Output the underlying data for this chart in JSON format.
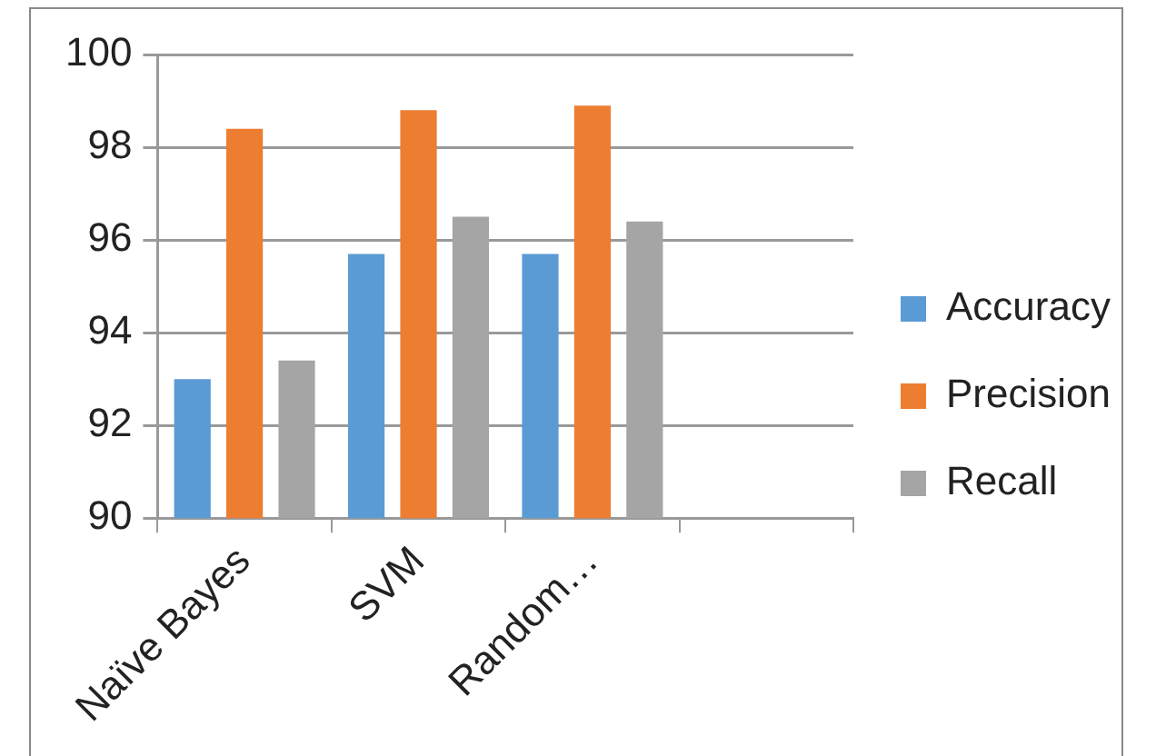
{
  "chart_data": {
    "type": "bar",
    "categories": [
      "Naïve Bayes",
      "SVM",
      "Random…",
      null
    ],
    "series": [
      {
        "name": "Accuracy",
        "color": "#5b9bd5",
        "values": [
          93.0,
          95.7,
          95.7,
          null
        ]
      },
      {
        "name": "Precision",
        "color": "#ed7d31",
        "values": [
          98.4,
          98.8,
          98.9,
          null
        ]
      },
      {
        "name": "Recall",
        "color": "#a5a5a5",
        "values": [
          93.4,
          96.5,
          96.4,
          null
        ]
      }
    ],
    "ylim": [
      90,
      100
    ],
    "yticks": [
      90,
      92,
      94,
      96,
      98,
      100
    ],
    "grid": "y",
    "legend": "right"
  }
}
